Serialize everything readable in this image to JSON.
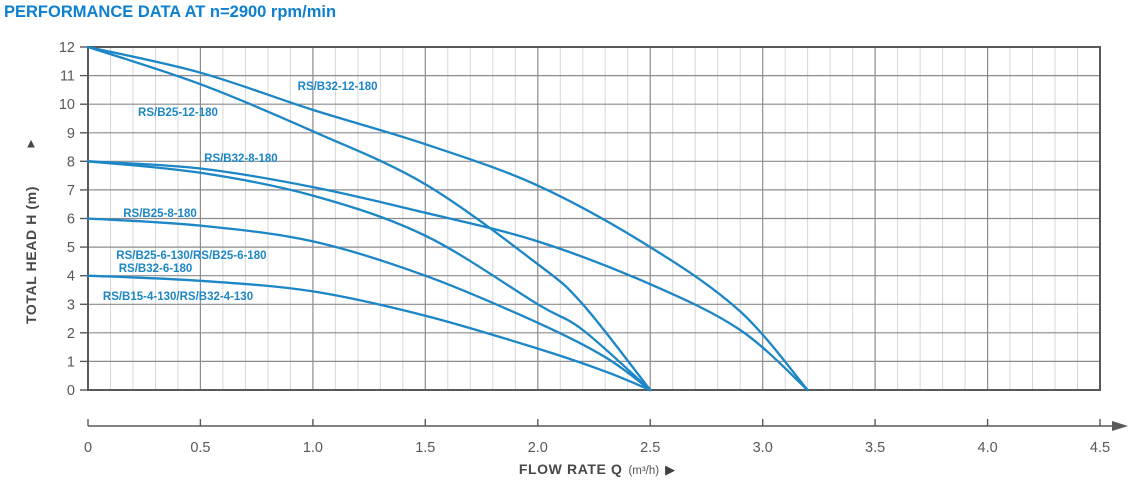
{
  "title": {
    "text": "PERFORMANCE DATA AT n=2900 rpm/min",
    "color": "#0e80d0"
  },
  "colors": {
    "curve": "#1c86c6",
    "curve_label": "#1c86c6",
    "frame": "#58595b",
    "grid_major": "#8c8c8e",
    "grid_minor": "#d7d7d9",
    "axis": "#58595b",
    "tick_text": "#58585a"
  },
  "chart_data": {
    "type": "line",
    "title": "PERFORMANCE DATA AT n=2900 rpm/min",
    "xlabel": "FLOW RATE Q",
    "xlabel_unit": "(m³/h)",
    "ylabel": "TOTAL HEAD H (m)",
    "xlim": [
      0,
      4.5
    ],
    "ylim": [
      0,
      12
    ],
    "x_major_step": 0.5,
    "x_minor_step": 0.1,
    "y_major_step": 1,
    "x_tick_labels": [
      "0",
      "0.5",
      "1.0",
      "1.5",
      "2.0",
      "2.5",
      "3.0",
      "3.5",
      "4.0",
      "4.5"
    ],
    "y_tick_labels": [
      "0",
      "1",
      "2",
      "3",
      "4",
      "5",
      "6",
      "7",
      "8",
      "9",
      "10",
      "11",
      "12"
    ],
    "grid": true,
    "legend_position": "labels-on-curves",
    "series": [
      {
        "name": "RS/B32-12-180",
        "max_head_m": 12,
        "max_flow_m3h": 3.2,
        "points": [
          [
            0,
            12
          ],
          [
            0.5,
            11.1
          ],
          [
            1.0,
            9.8
          ],
          [
            1.5,
            8.6
          ],
          [
            2.0,
            7.15
          ],
          [
            2.5,
            5.0
          ],
          [
            2.9,
            2.75
          ],
          [
            3.2,
            0
          ]
        ],
        "labels": [
          {
            "text": "RS/B32-12-180",
            "pos": [
              1.11,
              10.64
            ]
          }
        ]
      },
      {
        "name": "RS/B25-12-180",
        "max_head_m": 12,
        "max_flow_m3h": 2.5,
        "points": [
          [
            0,
            12
          ],
          [
            0.5,
            10.7
          ],
          [
            1.0,
            9.05
          ],
          [
            1.5,
            7.2
          ],
          [
            2.0,
            4.4
          ],
          [
            2.2,
            3.0
          ],
          [
            2.5,
            0
          ]
        ],
        "labels": [
          {
            "text": "RS/B25-12-180",
            "pos": [
              0.4,
              9.73
            ]
          }
        ]
      },
      {
        "name": "RS/B32-8-180",
        "max_head_m": 8,
        "max_flow_m3h": 3.2,
        "points": [
          [
            0,
            8
          ],
          [
            0.5,
            7.75
          ],
          [
            1.0,
            7.1
          ],
          [
            1.5,
            6.2
          ],
          [
            2.0,
            5.2
          ],
          [
            2.5,
            3.7
          ],
          [
            2.9,
            2.1
          ],
          [
            3.2,
            0
          ]
        ],
        "labels": [
          {
            "text": "RS/B32-8-180",
            "pos": [
              0.68,
              8.12
            ]
          }
        ]
      },
      {
        "name": "RS/B25-8-180",
        "max_head_m": 8,
        "max_flow_m3h": 2.5,
        "points": [
          [
            0,
            8
          ],
          [
            0.5,
            7.6
          ],
          [
            1.0,
            6.8
          ],
          [
            1.5,
            5.4
          ],
          [
            2.0,
            3.0
          ],
          [
            2.2,
            2.1
          ],
          [
            2.5,
            0
          ]
        ],
        "labels": [
          {
            "text": "RS/B25-8-180",
            "pos": [
              0.32,
              6.19
            ]
          }
        ]
      },
      {
        "name": "RS/B25-6-130 / RS/B25-6-180 / RS/B32-6-180",
        "max_head_m": 6,
        "max_flow_m3h": 2.5,
        "points": [
          [
            0,
            6
          ],
          [
            0.5,
            5.75
          ],
          [
            1.0,
            5.2
          ],
          [
            1.5,
            4.0
          ],
          [
            2.0,
            2.35
          ],
          [
            2.3,
            1.15
          ],
          [
            2.5,
            0
          ]
        ],
        "labels": [
          {
            "text": "RS/B25-6-130/RS/B25-6-180",
            "pos": [
              0.46,
              4.72
            ]
          },
          {
            "text": "RS/B32-6-180",
            "pos": [
              0.3,
              4.27
            ]
          }
        ]
      },
      {
        "name": "RS/B15-4-130/RS/B32-4-130",
        "max_head_m": 4,
        "max_flow_m3h": 2.5,
        "points": [
          [
            0,
            4
          ],
          [
            0.5,
            3.82
          ],
          [
            1.0,
            3.45
          ],
          [
            1.5,
            2.6
          ],
          [
            2.0,
            1.45
          ],
          [
            2.3,
            0.65
          ],
          [
            2.5,
            0
          ]
        ],
        "labels": [
          {
            "text": "RS/B15-4-130/RS/B32-4-130",
            "pos": [
              0.4,
              3.29
            ]
          }
        ]
      }
    ]
  }
}
